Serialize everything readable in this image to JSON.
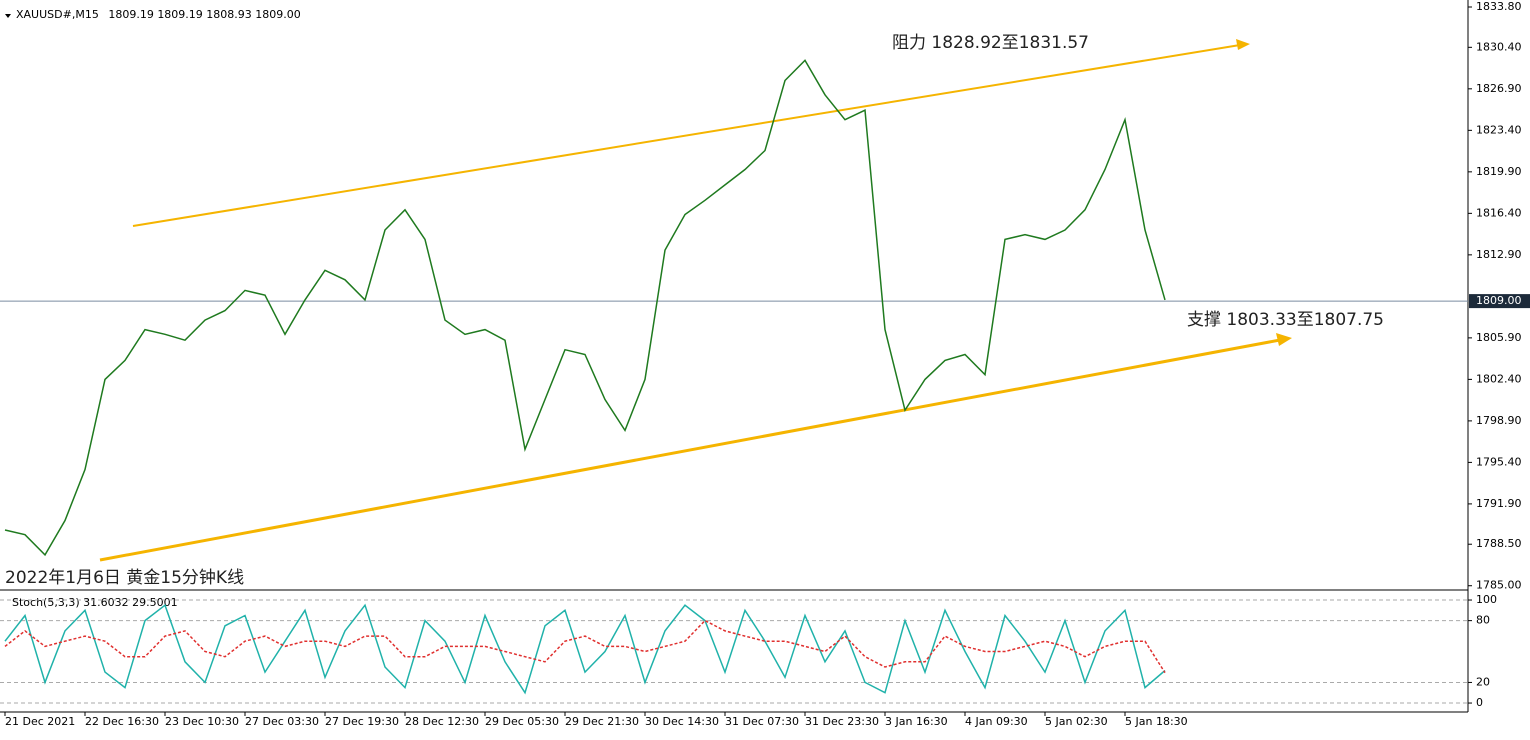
{
  "chart_data": [
    {
      "type": "line",
      "title": "XAUUSD#,M15",
      "subtitle": "1809.19 1809.19 1808.93 1809.00",
      "annotations": [
        "阻力 1828.92至1831.57",
        "支撑 1803.33至1807.75",
        "2022年1月6日 黄金15分钟K线"
      ],
      "categories": [
        "21 Dec 2021",
        "22 Dec 16:30",
        "23 Dec 10:30",
        "27 Dec 03:30",
        "27 Dec 19:30",
        "28 Dec 12:30",
        "29 Dec 05:30",
        "29 Dec 21:30",
        "30 Dec 14:30",
        "31 Dec 07:30",
        "31 Dec 23:30",
        "3 Jan 16:30",
        "4 Jan 09:30",
        "5 Jan 02:30",
        "5 Jan 18:30"
      ],
      "x": [
        0,
        0.25,
        0.5,
        0.75,
        1,
        1.25,
        1.5,
        1.75,
        2,
        2.25,
        2.5,
        2.75,
        3,
        3.25,
        3.5,
        3.75,
        4,
        4.25,
        4.5,
        4.75,
        5,
        5.25,
        5.5,
        5.75,
        6,
        6.25,
        6.5,
        6.75,
        7,
        7.25,
        7.5,
        7.75,
        8,
        8.25,
        8.5,
        8.75,
        9,
        9.25,
        9.5,
        9.75,
        10,
        10.25,
        10.5,
        10.75,
        11,
        11.25,
        11.5,
        11.75,
        12,
        12.25,
        12.5,
        12.75,
        13,
        13.25,
        13.5,
        13.75,
        14,
        14.25,
        14.5
      ],
      "series": [
        {
          "color": "#1f7a1f",
          "values": [
            1789.7,
            1789.3,
            1787.6,
            1790.5,
            1794.8,
            1802.4,
            1804.0,
            1806.6,
            1806.2,
            1805.7,
            1807.4,
            1808.2,
            1809.9,
            1809.5,
            1806.2,
            1809.1,
            1811.6,
            1810.8,
            1809.1,
            1815.0,
            1816.7,
            1814.2,
            1807.4,
            1806.2,
            1806.6,
            1805.7,
            1796.5,
            1800.7,
            1804.9,
            1804.5,
            1800.7,
            1798.1,
            1802.4,
            1813.3,
            1816.3,
            1817.5,
            1818.8,
            1820.1,
            1821.7,
            1827.6,
            1829.3,
            1826.4,
            1824.3,
            1825.1,
            1806.6,
            1799.8,
            1802.4,
            1804.0,
            1804.5,
            1802.8,
            1814.2,
            1814.6,
            1814.2,
            1815.0,
            1816.7,
            1820.1,
            1824.3,
            1815.0,
            1809.1
          ]
        }
      ],
      "last_price": {
        "value": 1809.0,
        "label": "1809.00"
      },
      "xlim": [
        -0.0625,
        18.2875
      ],
      "ylim": [
        1784.64,
        1834.39
      ],
      "yticks": [
        {
          "value": 1833.8,
          "label": "1833.80"
        },
        {
          "value": 1830.4,
          "label": "1830.40"
        },
        {
          "value": 1826.9,
          "label": "1826.90"
        },
        {
          "value": 1823.4,
          "label": "1823.40"
        },
        {
          "value": 1819.9,
          "label": "1819.90"
        },
        {
          "value": 1816.4,
          "label": "1816.40"
        },
        {
          "value": 1812.9,
          "label": "1812.90"
        },
        {
          "value": 1805.9,
          "label": "1805.90"
        },
        {
          "value": 1802.4,
          "label": "1802.40"
        },
        {
          "value": 1798.9,
          "label": "1798.90"
        },
        {
          "value": 1795.4,
          "label": "1795.40"
        },
        {
          "value": 1791.9,
          "label": "1791.90"
        },
        {
          "value": 1788.5,
          "label": "1788.50"
        },
        {
          "value": 1785.0,
          "label": "1785.00"
        }
      ]
    },
    {
      "type": "line",
      "title": "Stoch(5,3,3) 31.6032 29.5001",
      "x": [
        0,
        0.25,
        0.5,
        0.75,
        1,
        1.25,
        1.5,
        1.75,
        2,
        2.25,
        2.5,
        2.75,
        3,
        3.25,
        3.5,
        3.75,
        4,
        4.25,
        4.5,
        4.75,
        5,
        5.25,
        5.5,
        5.75,
        6,
        6.25,
        6.5,
        6.75,
        7,
        7.25,
        7.5,
        7.75,
        8,
        8.25,
        8.5,
        8.75,
        9,
        9.25,
        9.5,
        9.75,
        10,
        10.25,
        10.5,
        10.75,
        11,
        11.25,
        11.5,
        11.75,
        12,
        12.25,
        12.5,
        12.75,
        13,
        13.25,
        13.5,
        13.75,
        14,
        14.25,
        14.5
      ],
      "series": [
        {
          "color": "#20b2aa",
          "values": [
            60,
            85,
            20,
            70,
            90,
            30,
            15,
            80,
            95,
            40,
            20,
            75,
            85,
            30,
            60,
            90,
            25,
            70,
            95,
            35,
            15,
            80,
            60,
            20,
            85,
            40,
            10,
            75,
            90,
            30,
            50,
            85,
            20,
            70,
            95,
            80,
            30,
            90,
            60,
            25,
            85,
            40,
            70,
            20,
            10,
            80,
            30,
            90,
            50,
            15,
            85,
            60,
            30,
            80,
            20,
            70,
            90,
            15,
            31.6032
          ]
        },
        {
          "color": "#e0302f",
          "dashed": true,
          "values": [
            55,
            70,
            55,
            60,
            65,
            60,
            45,
            45,
            65,
            70,
            50,
            45,
            60,
            65,
            55,
            60,
            60,
            55,
            65,
            65,
            45,
            45,
            55,
            55,
            55,
            50,
            45,
            40,
            60,
            65,
            55,
            55,
            50,
            55,
            60,
            80,
            70,
            65,
            60,
            60,
            55,
            50,
            65,
            45,
            35,
            40,
            40,
            65,
            55,
            50,
            50,
            55,
            60,
            55,
            45,
            55,
            60,
            60,
            29.5001
          ]
        }
      ],
      "xlim": [
        -0.0625,
        18.2875
      ],
      "ylim": [
        -8.7,
        107.8
      ],
      "yticks": [
        100,
        80,
        20,
        0
      ],
      "grid": true
    }
  ]
}
